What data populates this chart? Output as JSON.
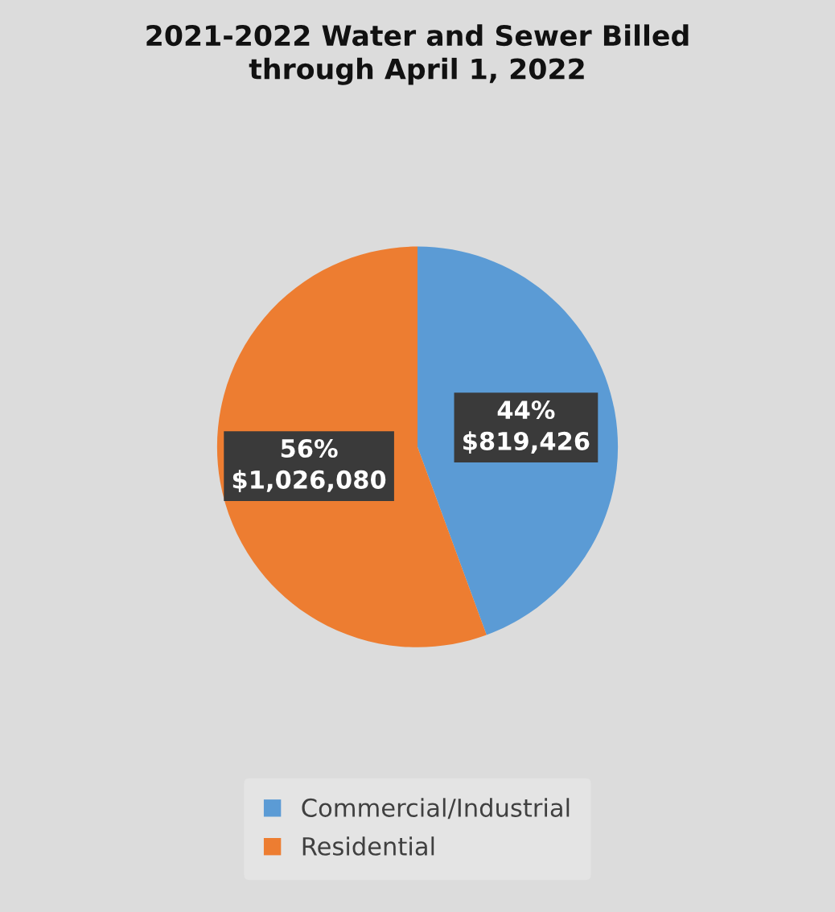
{
  "chart_data": {
    "type": "pie",
    "title": "2021-2022 Water and Sewer Billed\nthrough April 1, 2022",
    "categories": [
      "Commercial/Industrial",
      "Residential"
    ],
    "values": [
      819426,
      1026080
    ],
    "colors": [
      "#5b9bd5",
      "#ed7d31"
    ],
    "value_labels": [
      "44%\n$819,426",
      "56%\n$1,026,080"
    ],
    "legend": "bottom"
  }
}
